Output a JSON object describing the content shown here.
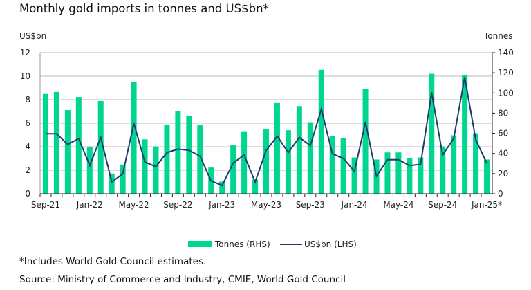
{
  "chart_data": {
    "type": "bar",
    "title": "Monthly gold imports in tonnes and US$bn*",
    "ylabel_left": "US$bn",
    "ylabel_right": "Tonnes",
    "ylim_left": [
      0,
      12
    ],
    "ylim_right": [
      0,
      140
    ],
    "yticks_left": [
      0,
      2,
      4,
      6,
      8,
      10,
      12
    ],
    "yticks_right": [
      0,
      20,
      40,
      60,
      80,
      100,
      120,
      140
    ],
    "xtick_labels": [
      "Sep-21",
      "Jan-22",
      "May-22",
      "Sep-22",
      "Jan-23",
      "May-23",
      "Sep-23",
      "Jan-24",
      "May-24",
      "Sep-24",
      "Jan-25*"
    ],
    "xtick_every": 4,
    "grid": true,
    "legend_position": "bottom",
    "categories": [
      "Sep-21",
      "Oct-21",
      "Nov-21",
      "Dec-21",
      "Jan-22",
      "Feb-22",
      "Mar-22",
      "Apr-22",
      "May-22",
      "Jun-22",
      "Jul-22",
      "Aug-22",
      "Sep-22",
      "Oct-22",
      "Nov-22",
      "Dec-22",
      "Jan-23",
      "Feb-23",
      "Mar-23",
      "Apr-23",
      "May-23",
      "Jun-23",
      "Jul-23",
      "Aug-23",
      "Sep-23",
      "Oct-23",
      "Nov-23",
      "Dec-23",
      "Jan-24",
      "Feb-24",
      "Mar-24",
      "Apr-24",
      "May-24",
      "Jun-24",
      "Jul-24",
      "Aug-24",
      "Sep-24",
      "Oct-24",
      "Nov-24",
      "Dec-24",
      "Jan-25"
    ],
    "series": [
      {
        "name": "Tonnes (RHS)",
        "type": "bar",
        "axis": "right",
        "color": "#00d68f",
        "values": [
          99,
          101,
          83,
          96,
          46,
          92,
          20,
          29,
          111,
          54,
          47,
          68,
          82,
          77,
          68,
          26,
          12,
          48,
          62,
          14,
          64,
          90,
          63,
          87,
          71,
          123,
          57,
          55,
          36,
          104,
          34,
          41,
          41,
          35,
          36,
          119,
          47,
          58,
          118,
          60,
          34
        ]
      },
      {
        "name": "US$bn (LHS)",
        "type": "line",
        "axis": "left",
        "color": "#1f3a6e",
        "values": [
          5.1,
          5.1,
          4.2,
          4.7,
          2.4,
          4.8,
          1.0,
          1.7,
          6.0,
          2.7,
          2.3,
          3.5,
          3.8,
          3.7,
          3.2,
          1.1,
          0.7,
          2.6,
          3.3,
          1.0,
          3.7,
          4.9,
          3.5,
          4.8,
          4.1,
          7.2,
          3.4,
          3.0,
          1.9,
          6.1,
          1.5,
          2.9,
          2.9,
          2.4,
          2.5,
          8.6,
          3.3,
          4.7,
          9.9,
          4.6,
          2.6
        ]
      }
    ]
  },
  "footnotes": {
    "estimates": "*Includes World Gold Council estimates.",
    "source": "Source: Ministry of Commerce and Industry, CMIE, World Gold Council"
  }
}
